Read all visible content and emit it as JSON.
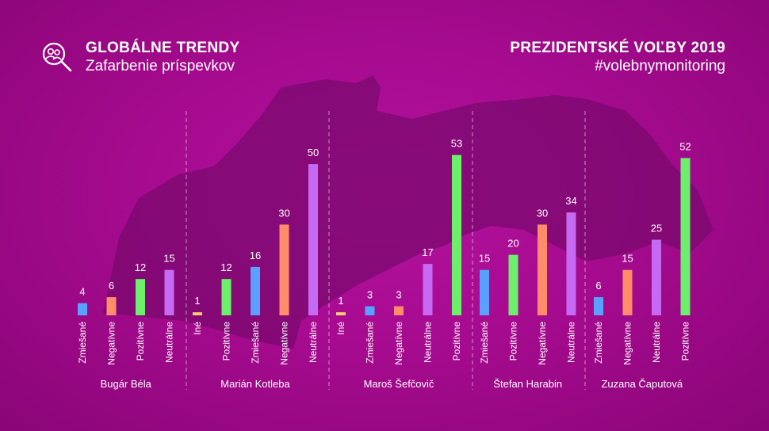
{
  "header": {
    "title": "GLOBÁLNE TRENDY",
    "subtitle": "Zafarbenie príspevkov",
    "right_title": "PREZIDENTSKÉ VOĽBY 2019",
    "right_subtitle": "#volebnymonitoring"
  },
  "colors": {
    "Zmiešané": "#5aa0ff",
    "Negatívne": "#ff8c6b",
    "Pozitívne": "#6cf06c",
    "Neutrálne": "#c66af3",
    "Iné": "#ffd36a"
  },
  "chart_data": {
    "type": "bar",
    "title": "GLOBÁLNE TRENDY",
    "subtitle": "Zafarbenie príspevkov",
    "ylim": [
      0,
      55
    ],
    "groups": [
      {
        "name": "Bugár Béla",
        "bars": [
          {
            "label": "Zmiešané",
            "value": 4
          },
          {
            "label": "Negatívne",
            "value": 6
          },
          {
            "label": "Pozitívne",
            "value": 12
          },
          {
            "label": "Neutrálne",
            "value": 15
          }
        ]
      },
      {
        "name": "Marián Kotleba",
        "bars": [
          {
            "label": "Iné",
            "value": 1
          },
          {
            "label": "Pozitívne",
            "value": 12
          },
          {
            "label": "Zmiešané",
            "value": 16
          },
          {
            "label": "Negatívne",
            "value": 30
          },
          {
            "label": "Neutrálne",
            "value": 50
          }
        ]
      },
      {
        "name": "Maroš Šefčovič",
        "bars": [
          {
            "label": "Iné",
            "value": 1
          },
          {
            "label": "Zmiešané",
            "value": 3
          },
          {
            "label": "Negatívne",
            "value": 3
          },
          {
            "label": "Neutrálne",
            "value": 17
          },
          {
            "label": "Pozitívne",
            "value": 53
          }
        ]
      },
      {
        "name": "Štefan Harabin",
        "bars": [
          {
            "label": "Zmiešané",
            "value": 15
          },
          {
            "label": "Pozitívne",
            "value": 20
          },
          {
            "label": "Negatívne",
            "value": 30
          },
          {
            "label": "Neutrálne",
            "value": 34
          }
        ]
      },
      {
        "name": "Zuzana Čaputová",
        "bars": [
          {
            "label": "Zmiešané",
            "value": 6
          },
          {
            "label": "Negatívne",
            "value": 15
          },
          {
            "label": "Neutrálne",
            "value": 25
          },
          {
            "label": "Pozitívne",
            "value": 52
          }
        ]
      }
    ]
  }
}
